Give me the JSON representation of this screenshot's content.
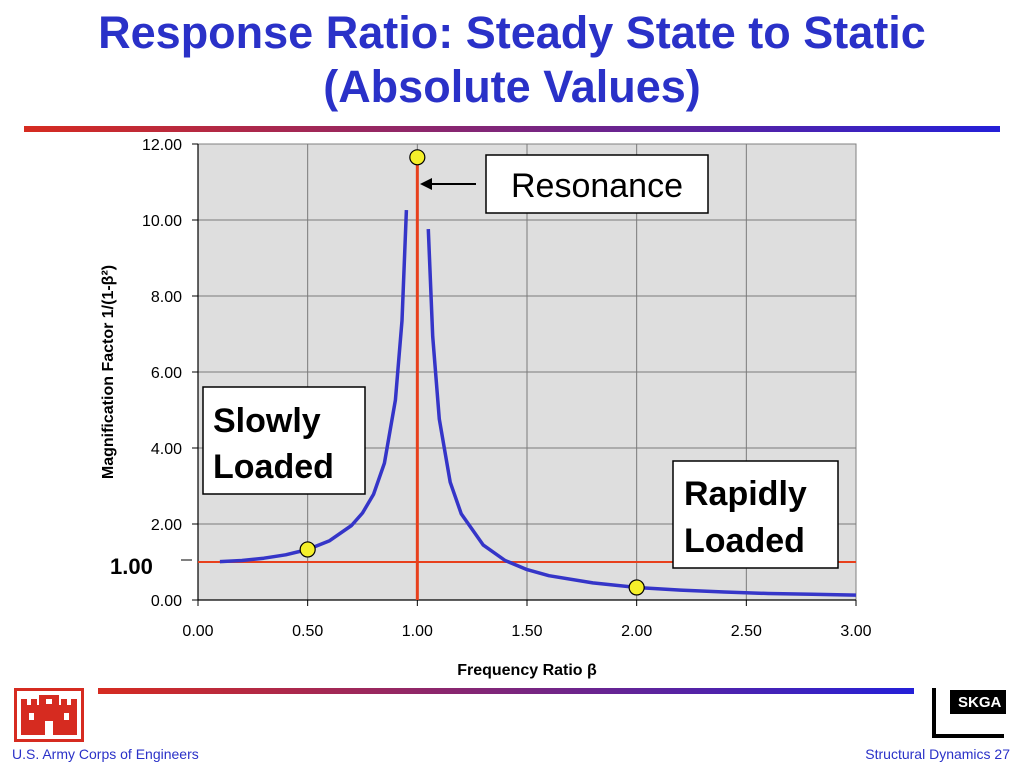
{
  "slide": {
    "title_line1": "Response Ratio: Steady State to Static",
    "title_line2": "(Absolute Values)",
    "footer_left": "U.S. Army Corps of Engineers",
    "footer_right": "Structural Dynamics 27",
    "logo_right_text": "SKGA"
  },
  "colors": {
    "title": "#2a31c8",
    "curve": "#3535c8",
    "reference_lines": "#e8401c",
    "marker_fill": "#f5f02a",
    "plot_background": "#dedede",
    "rule_start": "#d62b20",
    "rule_end": "#2420d8"
  },
  "chart_data": {
    "type": "line",
    "title": "",
    "xlabel": "Frequency Ratio β",
    "ylabel": "Magnification Factor 1/(1-β²)",
    "xlim": [
      0,
      3
    ],
    "ylim": [
      0,
      12
    ],
    "grid": true,
    "xticks": [
      "0.00",
      "0.50",
      "1.00",
      "1.50",
      "2.00",
      "2.50",
      "3.00"
    ],
    "yticks": [
      "0.00",
      "2.00",
      "4.00",
      "6.00",
      "8.00",
      "10.00",
      "12.00"
    ],
    "series": [
      {
        "left_branch": {
          "x": [
            0.1,
            0.2,
            0.3,
            0.4,
            0.5,
            0.6,
            0.7,
            0.75,
            0.8,
            0.85,
            0.9,
            0.93,
            0.95
          ],
          "y": [
            1.01,
            1.04,
            1.1,
            1.19,
            1.33,
            1.56,
            1.96,
            2.29,
            2.78,
            3.6,
            5.26,
            7.35,
            10.26
          ]
        },
        "right_branch": {
          "x": [
            1.05,
            1.07,
            1.1,
            1.15,
            1.2,
            1.3,
            1.4,
            1.5,
            1.6,
            1.8,
            2.0,
            2.2,
            2.4,
            2.6,
            2.8,
            3.0
          ],
          "y": [
            9.76,
            6.94,
            4.76,
            3.1,
            2.27,
            1.45,
            1.04,
            0.8,
            0.64,
            0.45,
            0.33,
            0.26,
            0.21,
            0.17,
            0.15,
            0.13
          ]
        }
      }
    ],
    "reference_lines": {
      "vertical_x": 1.0,
      "horizontal_y": 1.0,
      "horizontal_label": "1.00"
    },
    "markers": [
      {
        "x": 1.0,
        "y": 11.65
      },
      {
        "x": 0.5,
        "y": 1.33
      },
      {
        "x": 2.0,
        "y": 0.33
      }
    ],
    "annotations": {
      "resonance": "Resonance",
      "slowly_line1": "Slowly",
      "slowly_line2": "Loaded",
      "rapidly_line1": "Rapidly",
      "rapidly_line2": "Loaded"
    }
  }
}
